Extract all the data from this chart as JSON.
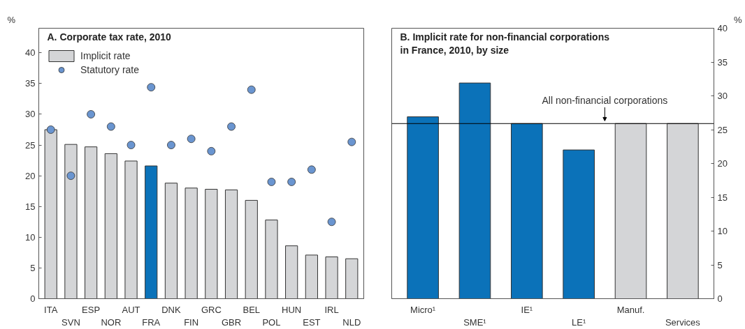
{
  "chart_data": [
    {
      "type": "bar",
      "title": "A. Corporate tax rate, 2010",
      "ylabel": "%",
      "categories": [
        "ITA",
        "SVN",
        "ESP",
        "NOR",
        "AUT",
        "FRA",
        "DNK",
        "FIN",
        "GRC",
        "GBR",
        "BEL",
        "POL",
        "HUN",
        "EST",
        "IRL",
        "NLD"
      ],
      "series": [
        {
          "name": "Implicit rate",
          "type": "bar",
          "color": "#d4d5d7",
          "colors": [
            "#d4d5d7",
            "#d4d5d7",
            "#d4d5d7",
            "#d4d5d7",
            "#d4d5d7",
            "#0b72b9",
            "#d4d5d7",
            "#d4d5d7",
            "#d4d5d7",
            "#d4d5d7",
            "#d4d5d7",
            "#d4d5d7",
            "#d4d5d7",
            "#d4d5d7",
            "#d4d5d7",
            "#d4d5d7"
          ],
          "values": [
            27.5,
            25.1,
            24.7,
            23.6,
            22.4,
            21.6,
            18.8,
            18.0,
            17.8,
            17.7,
            16.0,
            12.8,
            8.6,
            7.1,
            6.8,
            6.5
          ]
        },
        {
          "name": "Statutory rate",
          "type": "scatter",
          "color": "#6a95d0",
          "marker": "circle",
          "values": [
            27.5,
            20,
            30,
            28,
            25,
            34.4,
            25,
            26,
            24,
            28,
            34,
            19,
            19,
            21,
            12.5,
            25.5
          ]
        }
      ],
      "ylim": [
        0,
        44
      ],
      "yticks": [
        0,
        5,
        10,
        15,
        20,
        25,
        30,
        35,
        40
      ],
      "grid": false,
      "legend": "top left"
    },
    {
      "type": "bar",
      "title": "B. Implicit rate for non-financial corporations\nin France, 2010, by size",
      "ylabel": "%",
      "categories": [
        "Micro¹",
        "SME¹",
        "IE¹",
        "LE¹",
        "Manuf.",
        "Services"
      ],
      "values": [
        26.9,
        31.9,
        25.9,
        22.0,
        25.9,
        25.9
      ],
      "colors": [
        "#0b72b9",
        "#0b72b9",
        "#0b72b9",
        "#0b72b9",
        "#d4d5d7",
        "#d4d5d7"
      ],
      "ylim": [
        0,
        40
      ],
      "yticks": [
        0,
        5,
        10,
        15,
        20,
        25,
        30,
        35,
        40
      ],
      "grid": false,
      "ref_lines": [
        {
          "axis": "y",
          "value": 25.9,
          "label": "All non-financial corporations",
          "color": "#000000"
        }
      ]
    }
  ]
}
